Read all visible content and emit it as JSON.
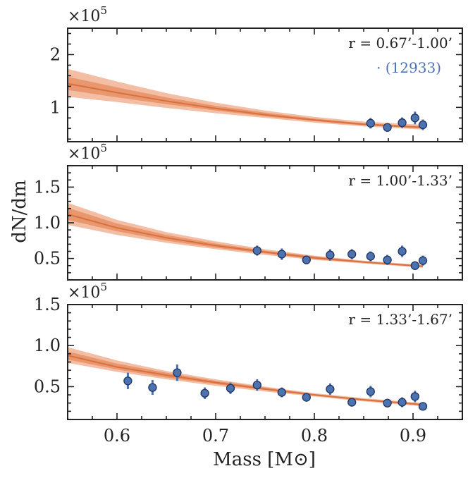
{
  "chart_data": [
    {
      "type": "scatter",
      "panel": "top",
      "annotation": "r = 0.67’-1.00’",
      "count_label": "· (12933)",
      "multiplier_base": "×10",
      "multiplier_exp": "5",
      "xlim": [
        0.55,
        0.95
      ],
      "ylim": [
        0.35,
        2.5
      ],
      "yticks": [
        1,
        2
      ],
      "ytick_labels": [
        "1",
        "2"
      ],
      "points": [
        {
          "x": 0.857,
          "y": 0.7,
          "err": 0.1
        },
        {
          "x": 0.874,
          "y": 0.62,
          "err": 0.08
        },
        {
          "x": 0.889,
          "y": 0.71,
          "err": 0.1
        },
        {
          "x": 0.902,
          "y": 0.8,
          "err": 0.12
        },
        {
          "x": 0.91,
          "y": 0.67,
          "err": 0.1
        }
      ],
      "model": {
        "x": [
          0.55,
          0.6,
          0.65,
          0.7,
          0.75,
          0.8,
          0.85,
          0.91
        ],
        "median": [
          1.45,
          1.28,
          1.12,
          0.98,
          0.86,
          0.76,
          0.68,
          0.62
        ],
        "inner_lo": [
          1.33,
          1.19,
          1.06,
          0.94,
          0.83,
          0.74,
          0.66,
          0.6
        ],
        "inner_hi": [
          1.58,
          1.38,
          1.19,
          1.03,
          0.9,
          0.79,
          0.7,
          0.64
        ],
        "outer_lo": [
          1.2,
          1.1,
          0.99,
          0.89,
          0.8,
          0.71,
          0.64,
          0.58
        ],
        "outer_hi": [
          1.73,
          1.49,
          1.27,
          1.09,
          0.94,
          0.82,
          0.73,
          0.67
        ]
      }
    },
    {
      "type": "scatter",
      "panel": "middle",
      "annotation": "r = 1.00’-1.33’",
      "multiplier_base": "×10",
      "multiplier_exp": "5",
      "xlim": [
        0.55,
        0.95
      ],
      "ylim": [
        0.2,
        1.8
      ],
      "yticks": [
        0.5,
        1.0,
        1.5
      ],
      "ytick_labels": [
        "0.5",
        "1.0",
        "1.5"
      ],
      "points": [
        {
          "x": 0.742,
          "y": 0.61,
          "err": 0.07
        },
        {
          "x": 0.767,
          "y": 0.56,
          "err": 0.08
        },
        {
          "x": 0.792,
          "y": 0.48,
          "err": 0.06
        },
        {
          "x": 0.816,
          "y": 0.55,
          "err": 0.08
        },
        {
          "x": 0.838,
          "y": 0.56,
          "err": 0.07
        },
        {
          "x": 0.857,
          "y": 0.53,
          "err": 0.07
        },
        {
          "x": 0.874,
          "y": 0.48,
          "err": 0.07
        },
        {
          "x": 0.889,
          "y": 0.6,
          "err": 0.08
        },
        {
          "x": 0.902,
          "y": 0.4,
          "err": 0.06
        },
        {
          "x": 0.91,
          "y": 0.47,
          "err": 0.07
        }
      ],
      "model": {
        "x": [
          0.55,
          0.6,
          0.65,
          0.7,
          0.75,
          0.8,
          0.85,
          0.91
        ],
        "median": [
          1.12,
          0.93,
          0.79,
          0.68,
          0.59,
          0.51,
          0.45,
          0.39
        ],
        "inner_lo": [
          1.04,
          0.88,
          0.75,
          0.65,
          0.57,
          0.49,
          0.44,
          0.38
        ],
        "inner_hi": [
          1.21,
          0.99,
          0.83,
          0.71,
          0.61,
          0.53,
          0.46,
          0.4
        ],
        "outer_lo": [
          0.97,
          0.83,
          0.72,
          0.63,
          0.55,
          0.48,
          0.43,
          0.37
        ],
        "outer_hi": [
          1.28,
          1.04,
          0.87,
          0.74,
          0.63,
          0.54,
          0.47,
          0.41
        ]
      }
    },
    {
      "type": "scatter",
      "panel": "bottom",
      "annotation": "r = 1.33’-1.67’",
      "multiplier_base": "×10",
      "multiplier_exp": "5",
      "xlabel": "Mass [M⊙]",
      "xlim": [
        0.55,
        0.95
      ],
      "ylim": [
        0.1,
        1.5
      ],
      "yticks": [
        0.5,
        1.0,
        1.5
      ],
      "ytick_labels": [
        "0.5",
        "1.0",
        "1.5"
      ],
      "xticks": [
        0.6,
        0.7,
        0.8,
        0.9
      ],
      "xtick_labels": [
        "0.6",
        "0.7",
        "0.8",
        "0.9"
      ],
      "points": [
        {
          "x": 0.611,
          "y": 0.57,
          "err": 0.1
        },
        {
          "x": 0.636,
          "y": 0.49,
          "err": 0.09
        },
        {
          "x": 0.661,
          "y": 0.67,
          "err": 0.1
        },
        {
          "x": 0.689,
          "y": 0.42,
          "err": 0.07
        },
        {
          "x": 0.715,
          "y": 0.48,
          "err": 0.07
        },
        {
          "x": 0.742,
          "y": 0.52,
          "err": 0.07
        },
        {
          "x": 0.767,
          "y": 0.43,
          "err": 0.06
        },
        {
          "x": 0.792,
          "y": 0.37,
          "err": 0.05
        },
        {
          "x": 0.816,
          "y": 0.47,
          "err": 0.07
        },
        {
          "x": 0.838,
          "y": 0.31,
          "err": 0.05
        },
        {
          "x": 0.857,
          "y": 0.44,
          "err": 0.07
        },
        {
          "x": 0.874,
          "y": 0.3,
          "err": 0.05
        },
        {
          "x": 0.889,
          "y": 0.31,
          "err": 0.06
        },
        {
          "x": 0.902,
          "y": 0.38,
          "err": 0.07
        },
        {
          "x": 0.91,
          "y": 0.26,
          "err": 0.05
        }
      ],
      "model": {
        "x": [
          0.55,
          0.6,
          0.65,
          0.7,
          0.75,
          0.8,
          0.85,
          0.91
        ],
        "median": [
          0.88,
          0.74,
          0.64,
          0.55,
          0.47,
          0.4,
          0.34,
          0.28
        ],
        "inner_lo": [
          0.83,
          0.71,
          0.61,
          0.53,
          0.46,
          0.39,
          0.33,
          0.27
        ],
        "inner_hi": [
          0.93,
          0.78,
          0.67,
          0.57,
          0.49,
          0.41,
          0.35,
          0.29
        ],
        "outer_lo": [
          0.79,
          0.68,
          0.59,
          0.51,
          0.44,
          0.38,
          0.32,
          0.26
        ],
        "outer_hi": [
          0.98,
          0.82,
          0.69,
          0.59,
          0.5,
          0.42,
          0.36,
          0.3
        ]
      }
    }
  ],
  "shared_ylabel": "dN/dm",
  "colors": {
    "point": "#4c72b0",
    "point_edge": "#1f3460",
    "band_outer": "#f2b394",
    "band_inner": "#e59066",
    "median": "#d9713f"
  }
}
